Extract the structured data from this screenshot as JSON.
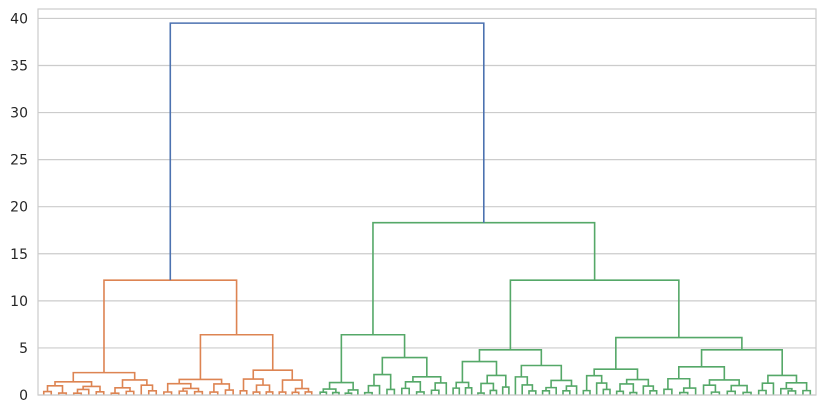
{
  "chart_data": {
    "type": "dendrogram",
    "title": "",
    "xlabel": "",
    "ylabel": "",
    "ylim": [
      0,
      41
    ],
    "grid": true,
    "y_ticks": [
      0,
      5,
      10,
      15,
      20,
      25,
      30,
      35,
      40
    ],
    "colors": {
      "orange_cluster": "#dd8452",
      "green_cluster": "#55a868",
      "root": "#4c72b0"
    },
    "merges": [
      {
        "height": 39.5,
        "between": [
          "orange_cluster",
          "green_cluster"
        ],
        "color": "#4c72b0"
      },
      {
        "height": 18.3,
        "cluster": "green_cluster"
      },
      {
        "height": 12.2,
        "cluster": "orange_cluster"
      },
      {
        "height": 12.2,
        "cluster": "green_cluster"
      },
      {
        "height": 6.4,
        "cluster": "orange_cluster"
      },
      {
        "height": 6.4,
        "cluster": "green_cluster"
      },
      {
        "height": 6.1,
        "cluster": "green_cluster"
      },
      {
        "height": 4.8,
        "cluster": "green_cluster"
      },
      {
        "height": 4.8,
        "cluster": "green_cluster"
      }
    ]
  }
}
